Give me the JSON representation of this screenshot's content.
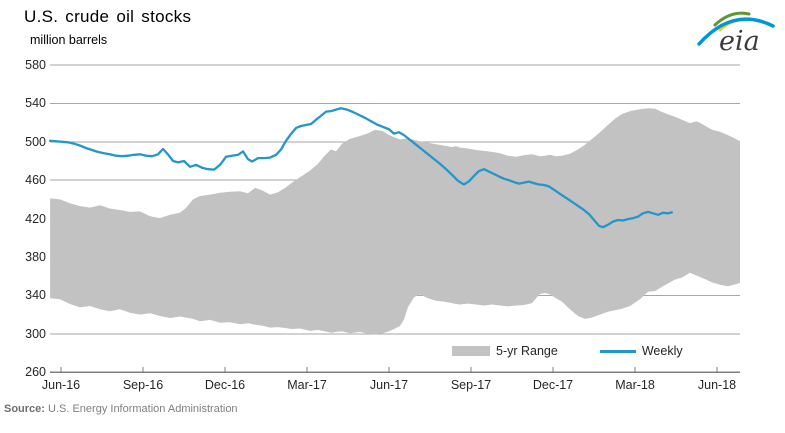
{
  "title": "U.S. crude oil stocks",
  "subtitle": "million barrels",
  "source": {
    "label": "Source:",
    "text": " U.S. Energy Information Administration"
  },
  "logo": {
    "text": "eia"
  },
  "legend": {
    "items": [
      {
        "label": "5-yr Range",
        "swatch": "band",
        "color": "#c2c2c2"
      },
      {
        "label": "Weekly",
        "swatch": "line",
        "color": "#2596c8"
      }
    ]
  },
  "colors": {
    "band": "#c2c2c2",
    "weekly_line": "#2596c8",
    "gridline": "#a6a6a6",
    "axis": "#7f7f7f",
    "tick_text": "#262626",
    "source_text": "#7f7f7f",
    "logo_blue": "#0096d7",
    "logo_green": "#5e9732",
    "logo_yellow": "#f5d226"
  },
  "chart_data": {
    "type": "area+line",
    "title": "U.S. crude oil stocks",
    "ylabel": "million barrels",
    "x_unit": "months since Jun-2016",
    "xlim": [
      -0.4,
      24.84
    ],
    "ylim": [
      260,
      580
    ],
    "grid": "horizontal",
    "legend_position": "bottom-inside",
    "y_ticks": [
      260,
      300,
      340,
      380,
      420,
      460,
      500,
      540,
      580
    ],
    "x_ticks": [
      {
        "m": 0,
        "label": "Jun-16"
      },
      {
        "m": 3,
        "label": "Sep-16"
      },
      {
        "m": 6,
        "label": "Dec-16"
      },
      {
        "m": 9,
        "label": "Mar-17"
      },
      {
        "m": 12,
        "label": "Jun-17"
      },
      {
        "m": 15,
        "label": "Sep-17"
      },
      {
        "m": 18,
        "label": "Dec-17"
      },
      {
        "m": 21,
        "label": "Mar-18"
      },
      {
        "m": 24,
        "label": "Jun-18"
      }
    ],
    "series": [
      {
        "name": "5-yr Range",
        "type": "band",
        "points_format": [
          "months_since_jun16",
          "lower",
          "upper"
        ],
        "points": [
          [
            -0.4,
            337,
            441
          ],
          [
            -0.04,
            336,
            440
          ],
          [
            0.33,
            331,
            436
          ],
          [
            0.7,
            327.5,
            433
          ],
          [
            1.06,
            329,
            431.5
          ],
          [
            1.43,
            325.5,
            434
          ],
          [
            1.79,
            323.5,
            430.5
          ],
          [
            2.16,
            325.5,
            429
          ],
          [
            2.52,
            322,
            427
          ],
          [
            2.89,
            320,
            427.5
          ],
          [
            3.26,
            321.5,
            422.5
          ],
          [
            3.62,
            318.5,
            420.5
          ],
          [
            3.99,
            316.5,
            424
          ],
          [
            4.35,
            318,
            426
          ],
          [
            4.57,
            317,
            431
          ],
          [
            4.83,
            315.5,
            440
          ],
          [
            5.09,
            313,
            443.5
          ],
          [
            5.45,
            314.5,
            445
          ],
          [
            5.82,
            311.5,
            447
          ],
          [
            6.18,
            312,
            448
          ],
          [
            6.55,
            310,
            448.5
          ],
          [
            6.84,
            311,
            446.5
          ],
          [
            7.1,
            309.5,
            452
          ],
          [
            7.35,
            308.5,
            449.5
          ],
          [
            7.65,
            306.5,
            445
          ],
          [
            7.94,
            307,
            447.5
          ],
          [
            8.2,
            306,
            452
          ],
          [
            8.45,
            305,
            457.5
          ],
          [
            8.74,
            305.5,
            463
          ],
          [
            9.11,
            303,
            470
          ],
          [
            9.4,
            304,
            477
          ],
          [
            9.66,
            302.5,
            486
          ],
          [
            9.88,
            301,
            492
          ],
          [
            10.06,
            302,
            490
          ],
          [
            10.28,
            302.5,
            498
          ],
          [
            10.57,
            300.5,
            503
          ],
          [
            10.94,
            302,
            506
          ],
          [
            11.23,
            300,
            509
          ],
          [
            11.49,
            299.5,
            512.5
          ],
          [
            11.78,
            300.5,
            511
          ],
          [
            12.04,
            303,
            506.5
          ],
          [
            12.4,
            308,
            502.5
          ],
          [
            12.55,
            315,
            503
          ],
          [
            12.7,
            328,
            503.5
          ],
          [
            12.92,
            338,
            502
          ],
          [
            13.13,
            341,
            500.5
          ],
          [
            13.43,
            337,
            499
          ],
          [
            13.72,
            334.5,
            497.5
          ],
          [
            14.01,
            333.5,
            496
          ],
          [
            14.31,
            332,
            494.5
          ],
          [
            14.45,
            331,
            495.5
          ],
          [
            14.6,
            330.5,
            494
          ],
          [
            14.89,
            331.5,
            493
          ],
          [
            15.18,
            330.5,
            491.5
          ],
          [
            15.48,
            329.5,
            490.5
          ],
          [
            15.77,
            330.5,
            489.5
          ],
          [
            16.06,
            329.5,
            488
          ],
          [
            16.35,
            328.5,
            485.5
          ],
          [
            16.65,
            329.5,
            484.5
          ],
          [
            16.94,
            330,
            486
          ],
          [
            17.23,
            332,
            487
          ],
          [
            17.38,
            337,
            486
          ],
          [
            17.52,
            341.5,
            485
          ],
          [
            17.71,
            342.5,
            485.5
          ],
          [
            17.89,
            341,
            486.5
          ],
          [
            18.11,
            337,
            485
          ],
          [
            18.33,
            333.5,
            485.5
          ],
          [
            18.62,
            325.5,
            487.5
          ],
          [
            18.91,
            318.5,
            492
          ],
          [
            19.17,
            315.5,
            497
          ],
          [
            19.43,
            317,
            503
          ],
          [
            19.72,
            320,
            510
          ],
          [
            20.01,
            323,
            517.5
          ],
          [
            20.27,
            324.5,
            524
          ],
          [
            20.52,
            326,
            529
          ],
          [
            20.82,
            329,
            532
          ],
          [
            21.18,
            336,
            534
          ],
          [
            21.48,
            344,
            535
          ],
          [
            21.73,
            344.5,
            534.5
          ],
          [
            21.99,
            349,
            531
          ],
          [
            22.21,
            352.5,
            528.5
          ],
          [
            22.46,
            356.5,
            526
          ],
          [
            22.72,
            358.5,
            523
          ],
          [
            23.01,
            363.5,
            519.5
          ],
          [
            23.27,
            360.5,
            521.5
          ],
          [
            23.52,
            357.5,
            517.5
          ],
          [
            23.82,
            353.5,
            512.5
          ],
          [
            24.11,
            351,
            510.5
          ],
          [
            24.4,
            349.5,
            507
          ],
          [
            24.62,
            351,
            504
          ],
          [
            24.84,
            353,
            500.5
          ]
        ]
      },
      {
        "name": "Weekly",
        "type": "line",
        "points_format": [
          "months_since_jun16",
          "million_barrels"
        ],
        "points": [
          [
            -0.4,
            501
          ],
          [
            -0.18,
            500.5
          ],
          [
            0.04,
            500
          ],
          [
            0.26,
            499.5
          ],
          [
            0.48,
            498
          ],
          [
            0.7,
            496
          ],
          [
            0.91,
            493.5
          ],
          [
            1.13,
            491.5
          ],
          [
            1.35,
            489.5
          ],
          [
            1.57,
            488
          ],
          [
            1.79,
            487
          ],
          [
            2.01,
            485.5
          ],
          [
            2.23,
            485
          ],
          [
            2.45,
            485.5
          ],
          [
            2.67,
            486.5
          ],
          [
            2.89,
            487
          ],
          [
            3.11,
            485.5
          ],
          [
            3.33,
            485
          ],
          [
            3.55,
            487
          ],
          [
            3.73,
            492.5
          ],
          [
            3.91,
            487
          ],
          [
            4.1,
            480
          ],
          [
            4.28,
            478.5
          ],
          [
            4.5,
            480
          ],
          [
            4.72,
            474
          ],
          [
            4.94,
            476
          ],
          [
            5.16,
            473
          ],
          [
            5.38,
            471.5
          ],
          [
            5.6,
            471
          ],
          [
            5.82,
            476
          ],
          [
            6.04,
            484.5
          ],
          [
            6.26,
            485.5
          ],
          [
            6.48,
            486.5
          ],
          [
            6.66,
            490
          ],
          [
            6.84,
            482
          ],
          [
            6.99,
            479.5
          ],
          [
            7.21,
            483
          ],
          [
            7.43,
            483
          ],
          [
            7.65,
            483.5
          ],
          [
            7.87,
            486.5
          ],
          [
            8.05,
            492
          ],
          [
            8.23,
            501
          ],
          [
            8.41,
            508
          ],
          [
            8.6,
            514.5
          ],
          [
            8.78,
            516.5
          ],
          [
            8.96,
            517.5
          ],
          [
            9.15,
            518.5
          ],
          [
            9.33,
            523
          ],
          [
            9.51,
            527
          ],
          [
            9.7,
            531.5
          ],
          [
            9.88,
            532
          ],
          [
            10.06,
            533.5
          ],
          [
            10.24,
            535
          ],
          [
            10.46,
            533.5
          ],
          [
            10.68,
            531
          ],
          [
            10.9,
            528
          ],
          [
            11.12,
            525
          ],
          [
            11.34,
            521.5
          ],
          [
            11.56,
            518
          ],
          [
            11.78,
            515.5
          ],
          [
            12.0,
            513
          ],
          [
            12.18,
            508.5
          ],
          [
            12.37,
            510
          ],
          [
            12.55,
            507
          ],
          [
            12.77,
            502
          ],
          [
            12.99,
            497
          ],
          [
            13.21,
            492
          ],
          [
            13.43,
            487
          ],
          [
            13.65,
            482
          ],
          [
            13.87,
            477
          ],
          [
            14.09,
            471.5
          ],
          [
            14.31,
            465.5
          ],
          [
            14.52,
            459.5
          ],
          [
            14.74,
            455.5
          ],
          [
            14.93,
            459
          ],
          [
            15.11,
            464.5
          ],
          [
            15.29,
            469.5
          ],
          [
            15.48,
            471.5
          ],
          [
            15.66,
            469
          ],
          [
            15.84,
            466.5
          ],
          [
            16.02,
            464
          ],
          [
            16.21,
            461.5
          ],
          [
            16.39,
            460
          ],
          [
            16.57,
            458
          ],
          [
            16.76,
            456.5
          ],
          [
            16.94,
            457.5
          ],
          [
            17.12,
            458.5
          ],
          [
            17.3,
            457
          ],
          [
            17.49,
            455.5
          ],
          [
            17.67,
            455
          ],
          [
            17.85,
            453.5
          ],
          [
            18.04,
            450
          ],
          [
            18.22,
            446.5
          ],
          [
            18.4,
            443
          ],
          [
            18.59,
            439.5
          ],
          [
            18.77,
            436
          ],
          [
            18.95,
            432.5
          ],
          [
            19.13,
            429
          ],
          [
            19.32,
            424.5
          ],
          [
            19.5,
            418.5
          ],
          [
            19.68,
            412.5
          ],
          [
            19.83,
            411
          ],
          [
            20.01,
            413.5
          ],
          [
            20.2,
            417
          ],
          [
            20.38,
            418.5
          ],
          [
            20.56,
            418
          ],
          [
            20.74,
            419.5
          ],
          [
            20.93,
            420.5
          ],
          [
            21.11,
            422
          ],
          [
            21.29,
            425.5
          ],
          [
            21.48,
            427
          ],
          [
            21.66,
            425.5
          ],
          [
            21.84,
            424
          ],
          [
            22.02,
            426
          ],
          [
            22.21,
            425.5
          ],
          [
            22.35,
            426.5
          ]
        ]
      }
    ]
  }
}
